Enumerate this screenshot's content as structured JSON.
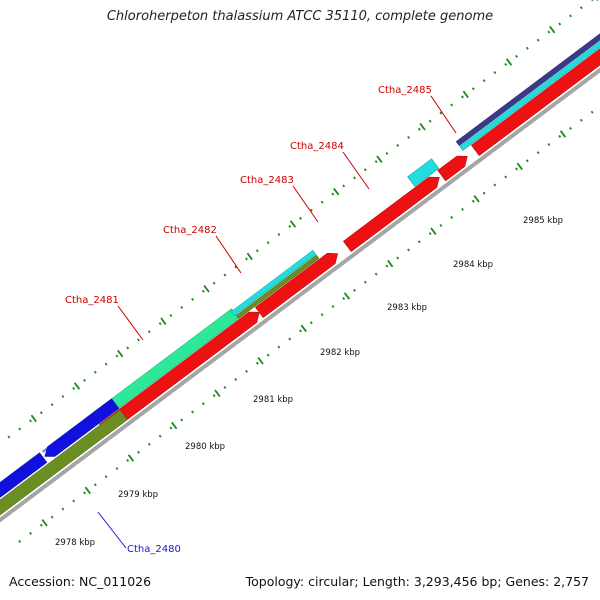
{
  "title": "Chloroherpeton thalassium ATCC 35110, complete genome",
  "footer": {
    "accession": "Accession: NC_011026",
    "topology": "Topology: circular; Length: 3,293,456 bp; Genes: 2,757"
  },
  "colors": {
    "backbone": "#a6a6a6",
    "tick": "#1a8a1a",
    "cds_label": "#cc0000",
    "selected_label": "#1a1acc",
    "red_cds": "#ee1111",
    "blue_cds": "#1111dd",
    "olive_cds": "#6b8e23",
    "mint_cds": "#2ee89a",
    "cyan_cds": "#22dddd",
    "navy_cds": "#3a3a8a",
    "green_cds": "#33cc33"
  },
  "scale_labels": [
    "2978 kbp",
    "2979 kbp",
    "2980 kbp",
    "2981 kbp",
    "2982 kbp",
    "2983 kbp",
    "2984 kbp",
    "2985 kbp"
  ],
  "gene_labels": [
    {
      "text": "Ctha_2480",
      "kind": "selected"
    },
    {
      "text": "Ctha_2481",
      "kind": "cds"
    },
    {
      "text": "Ctha_2482",
      "kind": "cds"
    },
    {
      "text": "Ctha_2483",
      "kind": "cds"
    },
    {
      "text": "Ctha_2484",
      "kind": "cds"
    },
    {
      "text": "Ctha_2485",
      "kind": "cds"
    }
  ]
}
